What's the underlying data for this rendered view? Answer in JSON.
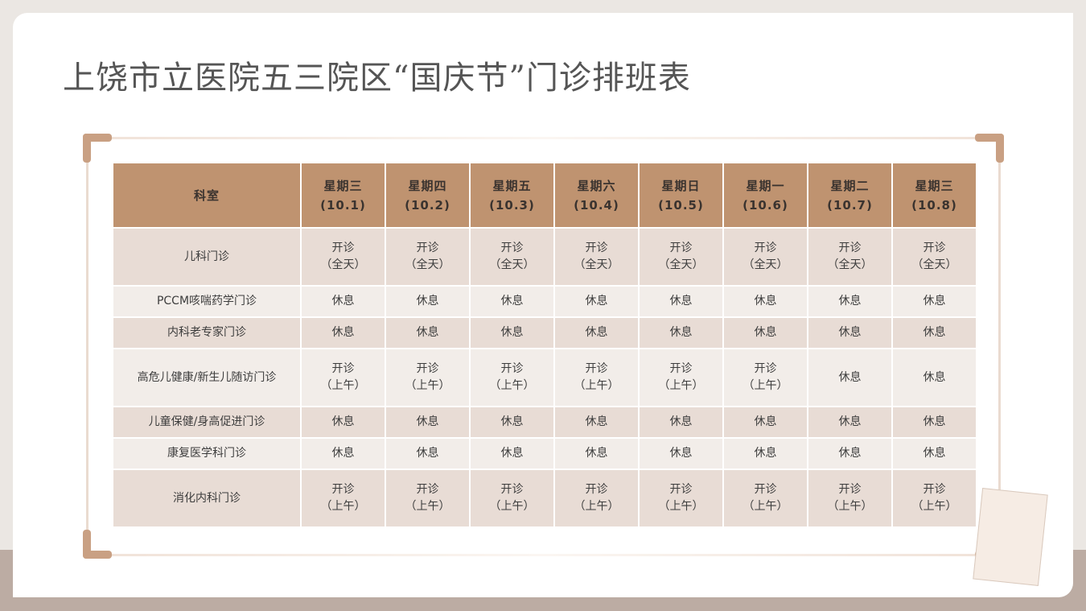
{
  "title": "上饶市立医院五三院区“国庆节”门诊排班表",
  "colors": {
    "header": "#bf9370",
    "row_dark": "#e8dcd5",
    "row_light": "#f2ede9",
    "accent": "#c9a083"
  },
  "table": {
    "dept_header": "科室",
    "days": [
      {
        "weekday": "星期三",
        "date": "(10.1)"
      },
      {
        "weekday": "星期四",
        "date": "(10.2)"
      },
      {
        "weekday": "星期五",
        "date": "(10.3)"
      },
      {
        "weekday": "星期六",
        "date": "(10.4)"
      },
      {
        "weekday": "星期日",
        "date": "(10.5)"
      },
      {
        "weekday": "星期一",
        "date": "(10.6)"
      },
      {
        "weekday": "星期二",
        "date": "(10.7)"
      },
      {
        "weekday": "星期三",
        "date": "(10.8)"
      }
    ],
    "rows": [
      {
        "dept": "儿科门诊",
        "cells": [
          "开诊\n（全天）",
          "开诊\n（全天）",
          "开诊\n（全天）",
          "开诊\n（全天）",
          "开诊\n（全天）",
          "开诊\n（全天）",
          "开诊\n（全天）",
          "开诊\n（全天）"
        ]
      },
      {
        "dept": "PCCM咳喘药学门诊",
        "cells": [
          "休息",
          "休息",
          "休息",
          "休息",
          "休息",
          "休息",
          "休息",
          "休息"
        ]
      },
      {
        "dept": "内科老专家门诊",
        "cells": [
          "休息",
          "休息",
          "休息",
          "休息",
          "休息",
          "休息",
          "休息",
          "休息"
        ]
      },
      {
        "dept": "高危儿健康/新生儿随访门诊",
        "cells": [
          "开诊\n（上午）",
          "开诊\n（上午）",
          "开诊\n（上午）",
          "开诊\n（上午）",
          "开诊\n（上午）",
          "开诊\n（上午）",
          "休息",
          "休息"
        ]
      },
      {
        "dept": "儿童保健/身高促进门诊",
        "cells": [
          "休息",
          "休息",
          "休息",
          "休息",
          "休息",
          "休息",
          "休息",
          "休息"
        ]
      },
      {
        "dept": "康复医学科门诊",
        "cells": [
          "休息",
          "休息",
          "休息",
          "休息",
          "休息",
          "休息",
          "休息",
          "休息"
        ]
      },
      {
        "dept": "消化内科门诊",
        "cells": [
          "开诊\n（上午）",
          "开诊\n（上午）",
          "开诊\n（上午）",
          "开诊\n（上午）",
          "开诊\n（上午）",
          "开诊\n（上午）",
          "开诊\n（上午）",
          "开诊\n（上午）"
        ]
      }
    ]
  }
}
